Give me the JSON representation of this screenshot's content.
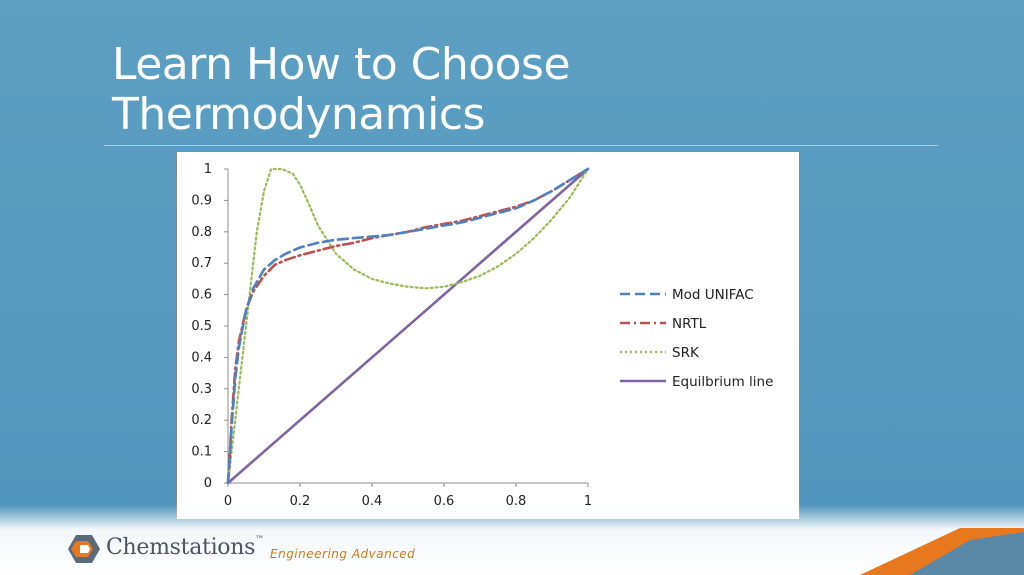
{
  "slide": {
    "title": "Learn How to Choose\nThermodynamics",
    "brand": "Chemstations",
    "trademark": "™",
    "tagline": "Engineering Advanced",
    "colors": {
      "background": "#5a9dc1",
      "accent_orange": "#e8781e",
      "title_text": "#ffffff"
    }
  },
  "chart_data": {
    "type": "line",
    "title": "",
    "xlabel": "",
    "ylabel": "",
    "xlim": [
      0,
      1
    ],
    "ylim": [
      0,
      1
    ],
    "x_ticks": [
      "0",
      "0.2",
      "0.4",
      "0.6",
      "0.8",
      "1"
    ],
    "y_ticks": [
      "0",
      "0.1",
      "0.2",
      "0.3",
      "0.4",
      "0.5",
      "0.6",
      "0.7",
      "0.8",
      "0.9",
      "1"
    ],
    "grid": false,
    "legend_position": "right",
    "series": [
      {
        "name": "Mod UNIFAC",
        "color": "#4f81bd",
        "style": "dashed",
        "x": [
          0,
          0.005,
          0.01,
          0.02,
          0.03,
          0.05,
          0.07,
          0.1,
          0.13,
          0.16,
          0.2,
          0.25,
          0.3,
          0.35,
          0.4,
          0.45,
          0.5,
          0.55,
          0.6,
          0.65,
          0.7,
          0.75,
          0.8,
          0.85,
          0.9,
          0.95,
          1
        ],
        "y": [
          0,
          0.08,
          0.18,
          0.33,
          0.43,
          0.55,
          0.62,
          0.68,
          0.71,
          0.73,
          0.75,
          0.765,
          0.775,
          0.78,
          0.785,
          0.79,
          0.8,
          0.81,
          0.82,
          0.83,
          0.845,
          0.86,
          0.875,
          0.9,
          0.93,
          0.965,
          1
        ]
      },
      {
        "name": "NRTL",
        "color": "#c0504d",
        "style": "dashdot",
        "x": [
          0,
          0.005,
          0.01,
          0.02,
          0.03,
          0.05,
          0.07,
          0.1,
          0.13,
          0.16,
          0.2,
          0.25,
          0.3,
          0.35,
          0.4,
          0.45,
          0.5,
          0.55,
          0.6,
          0.65,
          0.7,
          0.75,
          0.8,
          0.85,
          0.9,
          0.95,
          1
        ],
        "y": [
          0,
          0.09,
          0.2,
          0.36,
          0.45,
          0.55,
          0.61,
          0.66,
          0.695,
          0.71,
          0.725,
          0.74,
          0.755,
          0.765,
          0.78,
          0.79,
          0.8,
          0.815,
          0.825,
          0.835,
          0.85,
          0.865,
          0.88,
          0.9,
          0.93,
          0.965,
          1
        ]
      },
      {
        "name": "SRK",
        "color": "#9bbb59",
        "style": "dotted",
        "x": [
          0,
          0.02,
          0.04,
          0.06,
          0.08,
          0.1,
          0.12,
          0.15,
          0.18,
          0.2,
          0.22,
          0.25,
          0.3,
          0.35,
          0.4,
          0.45,
          0.5,
          0.55,
          0.6,
          0.65,
          0.7,
          0.75,
          0.8,
          0.85,
          0.9,
          0.95,
          1
        ],
        "y": [
          0,
          0.2,
          0.4,
          0.6,
          0.8,
          0.93,
          1.0,
          1.0,
          0.985,
          0.95,
          0.9,
          0.82,
          0.73,
          0.68,
          0.65,
          0.635,
          0.625,
          0.62,
          0.625,
          0.64,
          0.66,
          0.69,
          0.73,
          0.78,
          0.84,
          0.91,
          1
        ]
      },
      {
        "name": "Equilbrium line",
        "color": "#8064a2",
        "style": "solid",
        "x": [
          0,
          1
        ],
        "y": [
          0,
          1
        ]
      }
    ]
  }
}
